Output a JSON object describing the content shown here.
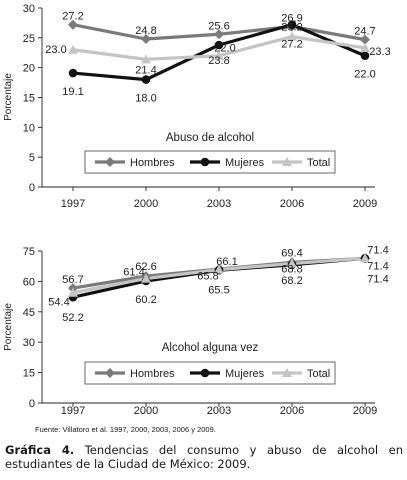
{
  "chart_data": [
    {
      "type": "line",
      "title": "Abuso de alcohol",
      "ylabel": "Porcentaje",
      "xlabel": "",
      "ylim": [
        0,
        30
      ],
      "yticks": [
        0,
        5,
        10,
        15,
        20,
        25,
        30
      ],
      "categories": [
        "1997",
        "2000",
        "2003",
        "2006",
        "2009"
      ],
      "legend_position": "bottom-center",
      "series": [
        {
          "name": "Hombres",
          "color": "#7a7a7a",
          "marker": "diamond",
          "values": [
            27.2,
            24.8,
            25.6,
            26.9,
            24.7
          ]
        },
        {
          "name": "Mujeres",
          "color": "#111111",
          "marker": "circle",
          "values": [
            19.1,
            18.0,
            23.8,
            27.2,
            22.0
          ]
        },
        {
          "name": "Total",
          "color": "#c4c4c4",
          "marker": "triangle",
          "values": [
            23.0,
            21.4,
            22.0,
            25.2,
            23.3
          ]
        }
      ]
    },
    {
      "type": "line",
      "title": "Alcohol alguna vez",
      "ylabel": "Porcentaje",
      "xlabel": "",
      "ylim": [
        0,
        75
      ],
      "yticks": [
        0,
        15,
        30,
        45,
        60,
        75
      ],
      "categories": [
        "1997",
        "2000",
        "2003",
        "2006",
        "2009"
      ],
      "legend_position": "bottom-center",
      "series": [
        {
          "name": "Hombres",
          "color": "#7a7a7a",
          "marker": "diamond",
          "values": [
            56.7,
            62.6,
            66.1,
            69.4,
            71.4
          ]
        },
        {
          "name": "Mujeres",
          "color": "#111111",
          "marker": "circle",
          "values": [
            52.2,
            60.2,
            65.5,
            68.2,
            71.4
          ]
        },
        {
          "name": "Total",
          "color": "#c4c4c4",
          "marker": "triangle",
          "values": [
            54.4,
            61.4,
            65.8,
            68.8,
            71.4
          ]
        }
      ]
    }
  ],
  "source": "Fuente: Villatoro et al. 1997, 2000, 2003, 2006 y 2009.",
  "caption": {
    "label": "Gráfica 4.",
    "text": " Tendencias del consumo y abuso de alcohol en estudiantes de la Ciudad de México: 2009."
  }
}
